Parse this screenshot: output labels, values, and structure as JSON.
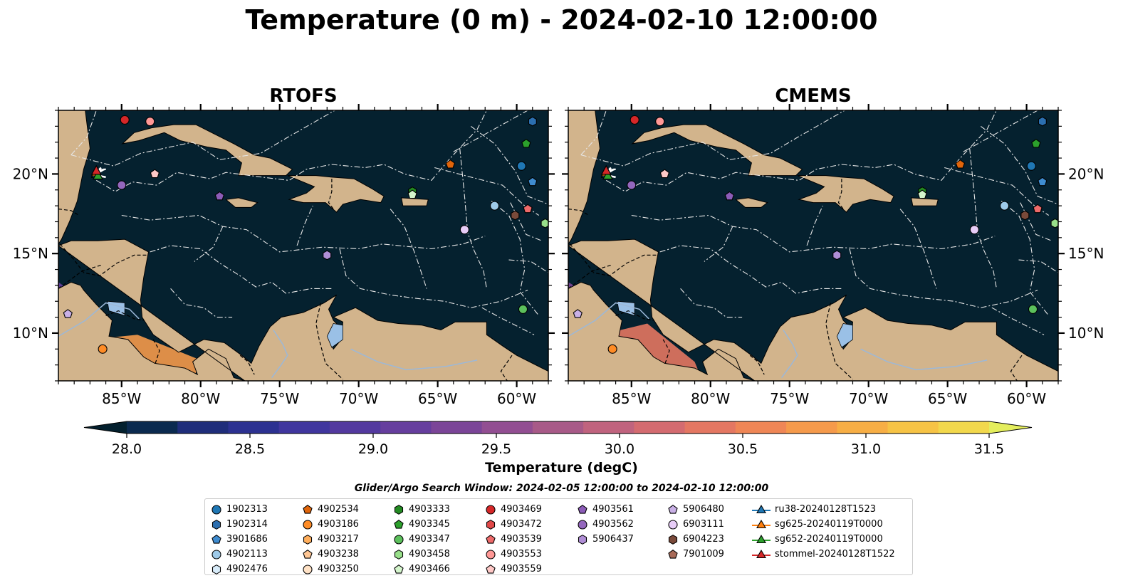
{
  "title": "Temperature (0 m) - 2024-02-10 12:00:00",
  "panels": [
    {
      "title": "RTOFS"
    },
    {
      "title": "CMEMS"
    }
  ],
  "colors": {
    "land": "#d2b48c",
    "ocean": "#05212f",
    "lakes": "#9ac0e6",
    "rivers": "#9cb8d8"
  },
  "colorbar": {
    "label": "Temperature (degC)",
    "ticks": [
      "28.0",
      "28.5",
      "29.0",
      "29.5",
      "30.0",
      "30.5",
      "31.0",
      "31.5"
    ],
    "min": 28.0,
    "max": 31.5,
    "extend": "both",
    "colors": [
      "#03202e",
      "#0b2a4f",
      "#1f2d7a",
      "#2c3191",
      "#40369e",
      "#53399f",
      "#663e9e",
      "#7b4598",
      "#924e92",
      "#a85a88",
      "#c0637e",
      "#d46b70",
      "#e47762",
      "#ef8656",
      "#f59a4b",
      "#f7ae45",
      "#f6c345",
      "#f2d84c",
      "#e4ee5d"
    ]
  },
  "search_window": "Glider/Argo Search Window: 2024-02-05 12:00:00 to 2024-02-10 12:00:00",
  "legend": {
    "columns": [
      [
        {
          "label": "1902313",
          "marker": "circle",
          "color": "#1f77b4"
        },
        {
          "label": "1902314",
          "marker": "hexagon",
          "color": "#2c6fb0"
        },
        {
          "label": "3901686",
          "marker": "pentagon",
          "color": "#3f8cd0"
        },
        {
          "label": "4902113",
          "marker": "circle",
          "color": "#9ecae9"
        },
        {
          "label": "4902476",
          "marker": "hexagon",
          "color": "#d8ecfa"
        }
      ],
      [
        {
          "label": "4902534",
          "marker": "pentagon",
          "color": "#e0650b"
        },
        {
          "label": "4903186",
          "marker": "circle",
          "color": "#ff8c26"
        },
        {
          "label": "4903217",
          "marker": "hexagon",
          "color": "#ffae5c"
        },
        {
          "label": "4903238",
          "marker": "pentagon",
          "color": "#ffc795"
        },
        {
          "label": "4903250",
          "marker": "circle",
          "color": "#ffe2c6"
        }
      ],
      [
        {
          "label": "4903333",
          "marker": "hexagon",
          "color": "#238b22"
        },
        {
          "label": "4903345",
          "marker": "pentagon",
          "color": "#2ca02c"
        },
        {
          "label": "4903347",
          "marker": "circle",
          "color": "#5cc05c"
        },
        {
          "label": "4903458",
          "marker": "hexagon",
          "color": "#98df8a"
        },
        {
          "label": "4903466",
          "marker": "pentagon",
          "color": "#d4f5cc"
        }
      ],
      [
        {
          "label": "4903469",
          "marker": "circle",
          "color": "#d62728"
        },
        {
          "label": "4903472",
          "marker": "hexagon",
          "color": "#e04848"
        },
        {
          "label": "4903539",
          "marker": "pentagon",
          "color": "#ee6a6a"
        },
        {
          "label": "4903553",
          "marker": "circle",
          "color": "#ff9896"
        },
        {
          "label": "4903559",
          "marker": "pentagon",
          "color": "#ffc8c6"
        }
      ],
      [
        {
          "label": "4903561",
          "marker": "pentagon",
          "color": "#8c5cb8"
        },
        {
          "label": "4903562",
          "marker": "circle",
          "color": "#9467bd"
        },
        {
          "label": "5906437",
          "marker": "hexagon",
          "color": "#b08ed6"
        },
        {
          "label": "",
          "marker": "none",
          "color": ""
        },
        {
          "label": "",
          "marker": "none",
          "color": ""
        }
      ],
      [
        {
          "label": "5906480",
          "marker": "pentagon",
          "color": "#c9b0e6"
        },
        {
          "label": "6903111",
          "marker": "circle",
          "color": "#e8cdf8"
        },
        {
          "label": "6904223",
          "marker": "hexagon",
          "color": "#7a4a3a"
        },
        {
          "label": "7901009",
          "marker": "pentagon",
          "color": "#a86a58"
        },
        {
          "label": "",
          "marker": "none",
          "color": ""
        }
      ],
      [
        {
          "label": "ru38-20240128T1523",
          "marker": "triangle",
          "color": "#1f77b4"
        },
        {
          "label": "sg625-20240119T0000",
          "marker": "triangle",
          "color": "#ff7f0e"
        },
        {
          "label": "sg652-20240119T0000",
          "marker": "triangle",
          "color": "#2ca02c"
        },
        {
          "label": "stommel-20240128T1522",
          "marker": "triangle",
          "color": "#d62728"
        },
        {
          "label": "",
          "marker": "none",
          "color": ""
        }
      ]
    ]
  },
  "chart_data": {
    "type": "heatmap",
    "projection": "PlateCarree",
    "xlim": [
      -89,
      -58
    ],
    "ylim": [
      7,
      24
    ],
    "xticks": [
      -85,
      -80,
      -75,
      -70,
      -65,
      -60
    ],
    "xtick_labels": [
      "85°W",
      "80°W",
      "75°W",
      "70°W",
      "65°W",
      "60°W"
    ],
    "yticks": [
      10,
      15,
      20
    ],
    "ytick_labels": [
      "10°N",
      "15°N",
      "20°N"
    ],
    "warm_patches": [
      {
        "panel": "RTOFS",
        "lon": [
          -89,
          -84,
          -80,
          -80.5,
          -84.5,
          -89
        ],
        "lat": [
          9.4,
          9.9,
          8.3,
          7.0,
          7.0,
          7.2
        ],
        "temperature": 30.6
      },
      {
        "panel": "RTOFS",
        "lon": [
          -89,
          -86,
          -84.3,
          -89
        ],
        "lat": [
          11.0,
          9.0,
          7.4,
          7.2
        ],
        "temperature": 31.0
      },
      {
        "panel": "RTOFS",
        "lon": [
          -89,
          -88,
          -87.2,
          -89
        ],
        "lat": [
          13.2,
          12.5,
          11.2,
          11.2
        ],
        "temperature": 29.0
      },
      {
        "panel": "CMEMS",
        "lon": [
          -89,
          -84,
          -81,
          -80.5,
          -84.5,
          -89
        ],
        "lat": [
          9.4,
          10.6,
          8.2,
          7.0,
          7.0,
          7.2
        ],
        "temperature": 30.3
      },
      {
        "panel": "CMEMS",
        "lon": [
          -89,
          -86,
          -84.3,
          -89
        ],
        "lat": [
          11.6,
          9.2,
          7.4,
          7.2
        ],
        "temperature": 29.6
      },
      {
        "panel": "CMEMS",
        "lon": [
          -89,
          -87.8,
          -86.7,
          -89
        ],
        "lat": [
          13.2,
          12.5,
          11.2,
          11.2
        ],
        "temperature": 29.2
      }
    ],
    "argo_floats": [
      {
        "id": "1902313",
        "lon": -59.7,
        "lat": 20.5
      },
      {
        "id": "1902314",
        "lon": -59.0,
        "lat": 23.3
      },
      {
        "id": "3901686",
        "lon": -59.0,
        "lat": 19.5
      },
      {
        "id": "4902113",
        "lon": -61.4,
        "lat": 18.0
      },
      {
        "id": "4902534",
        "lon": -64.2,
        "lat": 20.6
      },
      {
        "id": "4903186",
        "lon": -86.2,
        "lat": 9.0
      },
      {
        "id": "4903333",
        "lon": -66.6,
        "lat": 18.9
      },
      {
        "id": "4903345",
        "lon": -59.4,
        "lat": 21.9
      },
      {
        "id": "4903347",
        "lon": -59.6,
        "lat": 11.5
      },
      {
        "id": "4903458",
        "lon": -58.2,
        "lat": 16.9
      },
      {
        "id": "4903466",
        "lon": -66.6,
        "lat": 18.7
      },
      {
        "id": "4903469",
        "lon": -84.8,
        "lat": 23.4
      },
      {
        "id": "4903539",
        "lon": -59.3,
        "lat": 17.8
      },
      {
        "id": "4903553",
        "lon": -83.2,
        "lat": 23.3
      },
      {
        "id": "4903559",
        "lon": -82.9,
        "lat": 20.0
      },
      {
        "id": "4903561",
        "lon": -78.8,
        "lat": 18.6
      },
      {
        "id": "4903562",
        "lon": -85.0,
        "lat": 19.3
      },
      {
        "id": "5906437",
        "lon": -72.0,
        "lat": 14.9
      },
      {
        "id": "5906480",
        "lon": -88.4,
        "lat": 11.2
      },
      {
        "id": "6903111",
        "lon": -63.3,
        "lat": 16.5
      },
      {
        "id": "6904223",
        "lon": -60.1,
        "lat": 17.4
      }
    ],
    "glider_tracks": [
      {
        "id": "ru38-20240128T1523",
        "lon": [
          -86.6,
          -86.1
        ],
        "lat": [
          20.0,
          20.3
        ]
      },
      {
        "id": "sg625-20240119T0000",
        "lon": [
          -86.6,
          -86.3
        ],
        "lat": [
          20.1,
          20.4
        ]
      },
      {
        "id": "sg652-20240119T0000",
        "lon": [
          -86.5,
          -86.0
        ],
        "lat": [
          19.9,
          19.8
        ]
      },
      {
        "id": "stommel-20240128T1522",
        "lon": [
          -86.6,
          -86.0
        ],
        "lat": [
          20.2,
          20.3
        ]
      }
    ]
  }
}
